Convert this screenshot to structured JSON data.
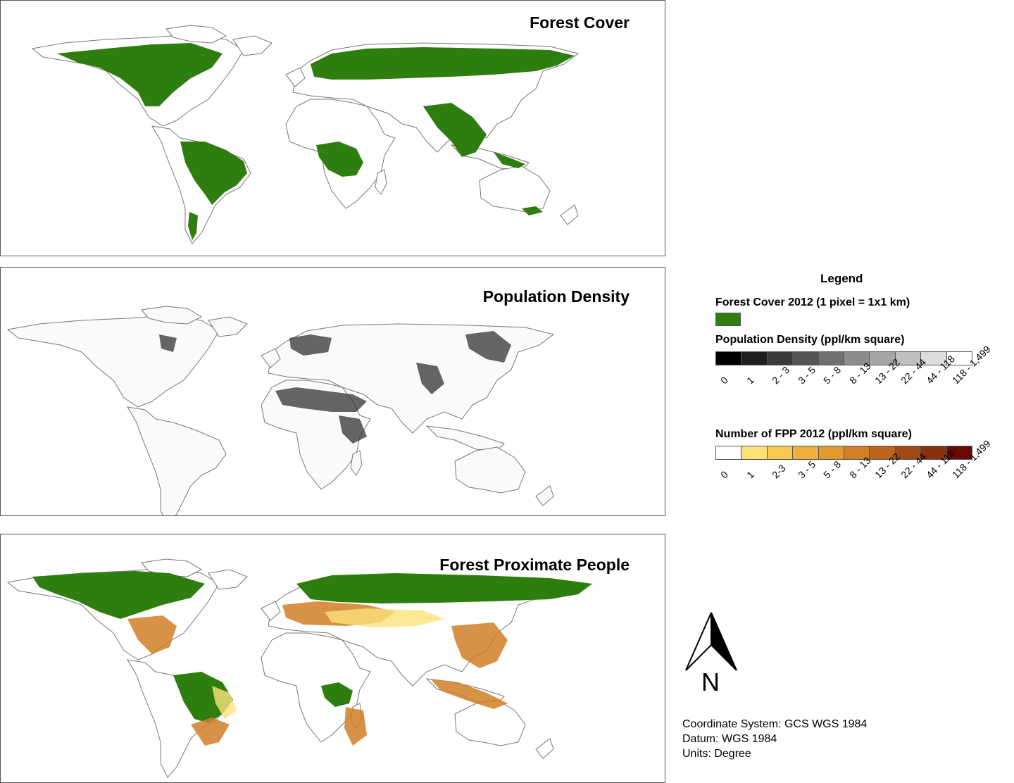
{
  "panels": [
    {
      "title": "Forest Cover"
    },
    {
      "title": "Population Density"
    },
    {
      "title": "Forest Proximate People"
    }
  ],
  "legend": {
    "title": "Legend",
    "forest": {
      "label": "Forest Cover 2012 (1 pixel = 1x1 km)",
      "color": "#2e7d0f"
    },
    "density": {
      "label": "Population Density (ppl/km square)",
      "classes": [
        "0",
        "1",
        "2 - 3",
        "3 - 5",
        "5 - 8",
        "8 - 13",
        "13 - 22",
        "22 - 44",
        "44 - 118",
        "118 - 1,499"
      ],
      "colors": [
        "#000000",
        "#1e1e1e",
        "#3a3a3a",
        "#555555",
        "#707070",
        "#8c8c8c",
        "#a6a6a6",
        "#c0c0c0",
        "#dcdcdc",
        "#ffffff"
      ]
    },
    "fpp": {
      "label": "Number of FPP 2012 (ppl/km square)",
      "classes": [
        "0",
        "1",
        "2-3",
        "3 - 5",
        "5 - 8",
        "8 - 13",
        "13 - 22",
        "22 - 44",
        "44 - 118",
        "118 - 1,499"
      ],
      "colors": [
        "#ffffff",
        "#fde27a",
        "#f9c752",
        "#f1ad3d",
        "#e39830",
        "#d17f27",
        "#bd6420",
        "#a14a18",
        "#863210",
        "#6b0a05"
      ]
    }
  },
  "north_arrow": {
    "letter": "N"
  },
  "notes": {
    "coordinate_system": "Coordinate System: GCS WGS 1984",
    "datum": "Datum: WGS 1984",
    "units": "Units: Degree"
  }
}
